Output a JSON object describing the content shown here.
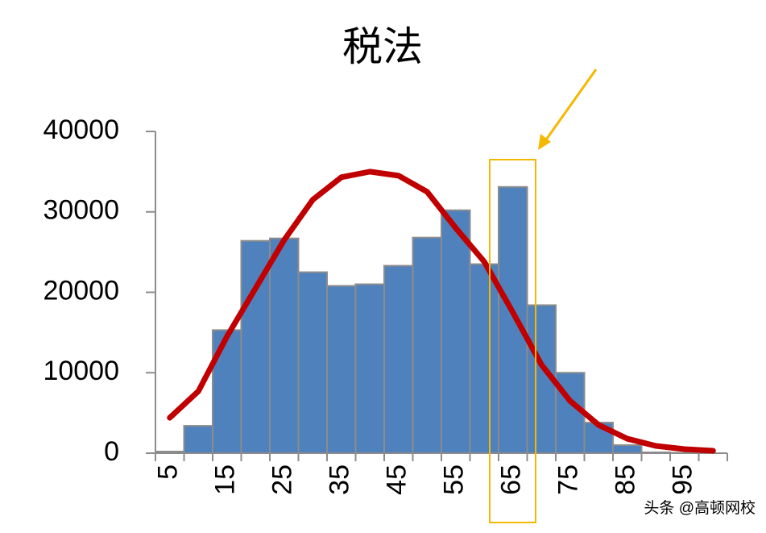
{
  "chart_data": {
    "type": "histogram",
    "title": "税法",
    "bins": [
      2.5,
      7.5,
      12.5,
      17.5,
      22.5,
      27.5,
      32.5,
      37.5,
      42.5,
      47.5,
      52.5,
      57.5,
      62.5,
      67.5,
      72.5,
      77.5,
      82.5,
      87.5,
      92.5,
      97.5,
      102.5
    ],
    "values": [
      200,
      3400,
      15300,
      26400,
      26700,
      22500,
      20800,
      21000,
      23300,
      26800,
      30200,
      23500,
      33100,
      18400,
      10000,
      3800,
      1000,
      100,
      50,
      0
    ],
    "color": "#4f81bd",
    "curve": {
      "color": "#c00000",
      "x": [
        5,
        10,
        15,
        20,
        25,
        30,
        35,
        40,
        45,
        50,
        55,
        60,
        65,
        70,
        75,
        80,
        85,
        90,
        95,
        100
      ],
      "y": [
        4400,
        7700,
        14500,
        20500,
        26500,
        31500,
        34300,
        35000,
        34500,
        32500,
        28000,
        23800,
        17500,
        11000,
        6500,
        3500,
        1800,
        900,
        500,
        300
      ]
    },
    "xlim": [
      2.5,
      102.5
    ],
    "xticks": [
      5,
      15,
      25,
      35,
      45,
      55,
      65,
      75,
      85,
      95
    ],
    "ylim": [
      0,
      40000
    ],
    "yticks": [
      0,
      10000,
      20000,
      30000,
      40000
    ],
    "watermark": "头条 @高顿网校"
  }
}
